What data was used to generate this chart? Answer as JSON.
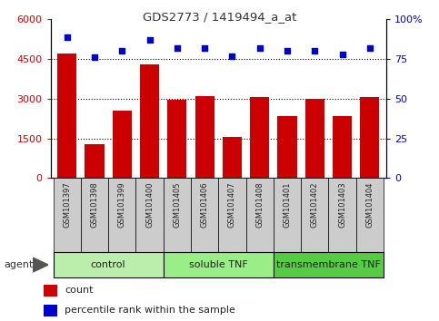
{
  "title": "GDS2773 / 1419494_a_at",
  "samples": [
    "GSM101397",
    "GSM101398",
    "GSM101399",
    "GSM101400",
    "GSM101405",
    "GSM101406",
    "GSM101407",
    "GSM101408",
    "GSM101401",
    "GSM101402",
    "GSM101403",
    "GSM101404"
  ],
  "counts": [
    4700,
    1300,
    2550,
    4300,
    2950,
    3100,
    1550,
    3050,
    2350,
    3000,
    2350,
    3050
  ],
  "percentiles": [
    89,
    76,
    80,
    87,
    82,
    82,
    77,
    82,
    80,
    80,
    78,
    82
  ],
  "groups": [
    {
      "label": "control",
      "start": 0,
      "end": 4,
      "color": "#bbeeaa"
    },
    {
      "label": "soluble TNF",
      "start": 4,
      "end": 8,
      "color": "#99ee88"
    },
    {
      "label": "transmembrane TNF",
      "start": 8,
      "end": 12,
      "color": "#55cc44"
    }
  ],
  "ylim_left": [
    0,
    6000
  ],
  "ylim_right": [
    0,
    100
  ],
  "yticks_left": [
    0,
    1500,
    3000,
    4500,
    6000
  ],
  "yticks_right": [
    0,
    25,
    50,
    75,
    100
  ],
  "bar_color": "#cc0000",
  "dot_color": "#0000cc",
  "grid_color": "#000000",
  "left_tick_color": "#cc0000",
  "right_tick_color": "#0000cc",
  "legend_count_color": "#cc0000",
  "legend_pct_color": "#0000cc",
  "background_sample": "#cccccc"
}
